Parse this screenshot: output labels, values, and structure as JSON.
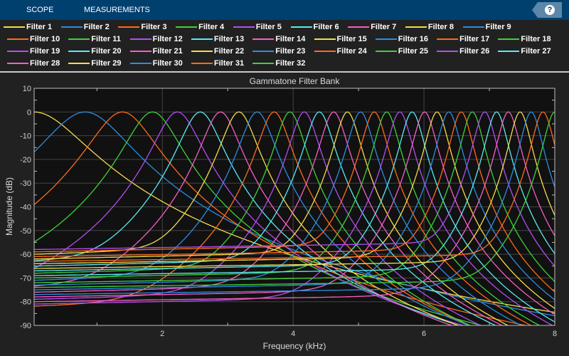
{
  "toolbar": {
    "tabs": [
      "SCOPE",
      "MEASUREMENTS"
    ],
    "help_label": "?",
    "help_icon": "help-icon"
  },
  "chart_data": {
    "type": "line",
    "title": "Gammatone Filter Bank",
    "xlabel": "Frequency (kHz)",
    "ylabel": "Magnitude (dB)",
    "xlim": [
      0.04,
      8
    ],
    "ylim": [
      -90,
      10
    ],
    "xticks": [
      "2",
      "4",
      "6",
      "8"
    ],
    "yticks": [
      "10",
      "0",
      "-10",
      "-20",
      "-30",
      "-40",
      "-50",
      "-60",
      "-70",
      "-80",
      "-90"
    ],
    "grid": true,
    "legend_placement": "top",
    "peak_db": 0,
    "series": [
      {
        "name": "Filter 1",
        "color": "#f5dc4c",
        "center_khz": 0.04
      },
      {
        "name": "Filter 2",
        "color": "#2b8ee0",
        "center_khz": 0.82
      },
      {
        "name": "Filter 3",
        "color": "#ff6b1c",
        "center_khz": 1.39
      },
      {
        "name": "Filter 4",
        "color": "#3fd13c",
        "center_khz": 1.85
      },
      {
        "name": "Filter 5",
        "color": "#b24ef3",
        "center_khz": 2.23
      },
      {
        "name": "Filter 6",
        "color": "#58ecf2",
        "center_khz": 2.58
      },
      {
        "name": "Filter 7",
        "color": "#f85ec6",
        "center_khz": 2.89
      },
      {
        "name": "Filter 8",
        "color": "#f5dc4c",
        "center_khz": 3.17
      },
      {
        "name": "Filter 9",
        "color": "#2b8ee0",
        "center_khz": 3.45
      },
      {
        "name": "Filter 10",
        "color": "#ff6b1c",
        "center_khz": 3.71
      },
      {
        "name": "Filter 11",
        "color": "#3fd13c",
        "center_khz": 3.95
      },
      {
        "name": "Filter 12",
        "color": "#b24ef3",
        "center_khz": 4.17
      },
      {
        "name": "Filter 13",
        "color": "#58ecf2",
        "center_khz": 4.4
      },
      {
        "name": "Filter 14",
        "color": "#f85ec6",
        "center_khz": 4.62
      },
      {
        "name": "Filter 15",
        "color": "#f5dc4c",
        "center_khz": 4.83
      },
      {
        "name": "Filter 16",
        "color": "#2b8ee0",
        "center_khz": 5.03
      },
      {
        "name": "Filter 17",
        "color": "#ff6b1c",
        "center_khz": 5.24
      },
      {
        "name": "Filter 18",
        "color": "#3fd13c",
        "center_khz": 5.43
      },
      {
        "name": "Filter 19",
        "color": "#b24ef3",
        "center_khz": 5.63
      },
      {
        "name": "Filter 20",
        "color": "#58ecf2",
        "center_khz": 5.82
      },
      {
        "name": "Filter 21",
        "color": "#f85ec6",
        "center_khz": 6.01
      },
      {
        "name": "Filter 22",
        "color": "#f5dc4c",
        "center_khz": 6.2
      },
      {
        "name": "Filter 23",
        "color": "#2b8ee0",
        "center_khz": 6.38
      },
      {
        "name": "Filter 24",
        "color": "#ff6b1c",
        "center_khz": 6.57
      },
      {
        "name": "Filter 25",
        "color": "#3fd13c",
        "center_khz": 6.74
      },
      {
        "name": "Filter 26",
        "color": "#b24ef3",
        "center_khz": 6.93
      },
      {
        "name": "Filter 27",
        "color": "#58ecf2",
        "center_khz": 7.11
      },
      {
        "name": "Filter 28",
        "color": "#f85ec6",
        "center_khz": 7.29
      },
      {
        "name": "Filter 29",
        "color": "#f5dc4c",
        "center_khz": 7.47
      },
      {
        "name": "Filter 30",
        "color": "#2b8ee0",
        "center_khz": 7.64
      },
      {
        "name": "Filter 31",
        "color": "#ff6b1c",
        "center_khz": 7.82
      },
      {
        "name": "Filter 32",
        "color": "#3fd13c",
        "center_khz": 8.0
      }
    ]
  }
}
